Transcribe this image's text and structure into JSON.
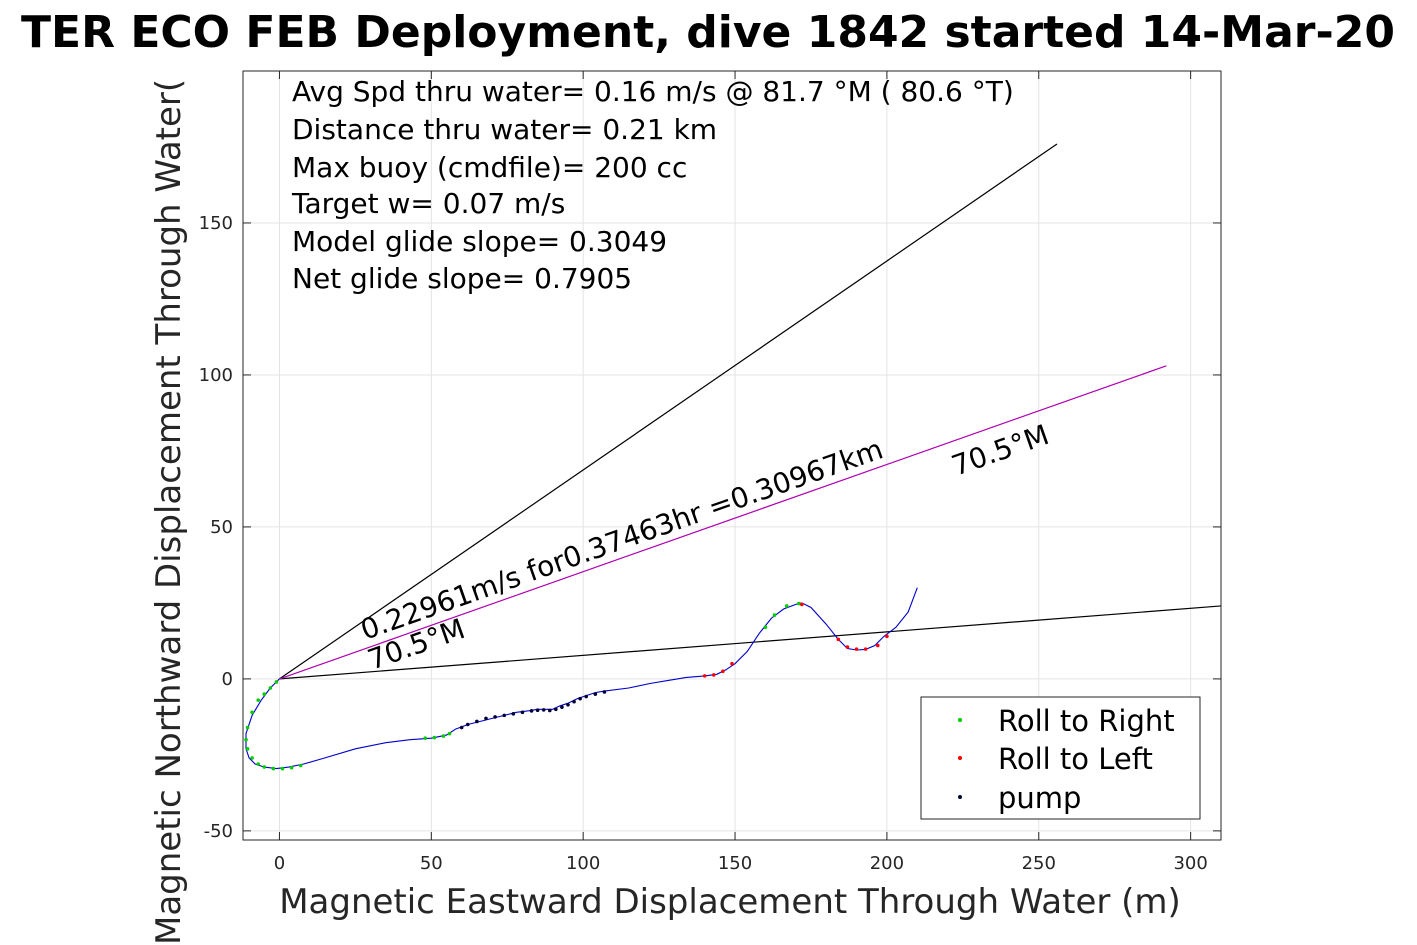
{
  "chart_data": {
    "type": "line",
    "title": "TER ECO FEB Deployment, dive 1842 started 14-Mar-20",
    "xlabel": "Magnetic Eastward Displacement Through Water (m)",
    "ylabel": "Magnetic Northward Displacement Through Water(",
    "xlim": [
      -12,
      310
    ],
    "ylim": [
      -53,
      200
    ],
    "xticks": [
      0,
      50,
      100,
      150,
      200,
      250,
      300
    ],
    "yticks": [
      -50,
      0,
      50,
      100,
      150
    ],
    "grid": true,
    "annotations": {
      "lines": [
        "Avg Spd thru water=  0.16 m/s @  81.7 °M ( 80.6 °T)",
        "Distance thru water=  0.21 km",
        "Max buoy (cmdfile)= 200 cc",
        "Target w= 0.07 m/s",
        "Model glide slope= 0.3049",
        "Net glide slope= 0.7905"
      ],
      "vector_label": "0.22961m/s for0.37463hr =0.30967km",
      "heading_label_upper": "70.5°M",
      "heading_label_lower": "70.5°M"
    },
    "reference_lines": [
      {
        "x": [
          0,
          256
        ],
        "y": [
          0,
          176
        ],
        "color": "#000000"
      },
      {
        "x": [
          0,
          310
        ],
        "y": [
          0,
          24
        ],
        "color": "#000000"
      },
      {
        "x": [
          0,
          292
        ],
        "y": [
          0,
          103
        ],
        "color": "#b000b0"
      }
    ],
    "track": {
      "name": "",
      "color": "#0000cc",
      "x": [
        0,
        -3,
        -6,
        -9,
        -11,
        -11,
        -10,
        -8,
        -5,
        -1,
        3,
        8,
        15,
        25,
        35,
        43,
        50,
        55,
        58,
        62,
        66,
        70,
        74,
        78,
        82,
        85,
        88,
        90,
        92,
        95,
        98,
        101,
        104,
        107,
        115,
        122,
        128,
        134,
        140,
        144,
        147,
        150,
        154,
        158,
        162,
        166,
        170,
        172,
        175,
        180,
        184,
        187,
        190,
        193,
        196,
        199,
        203,
        207,
        210
      ],
      "y": [
        0,
        -3,
        -7,
        -12,
        -18,
        -23,
        -26,
        -28,
        -29,
        -29.5,
        -29,
        -28,
        -26,
        -23,
        -21,
        -20,
        -19.5,
        -18.5,
        -16.5,
        -15,
        -14,
        -13,
        -12,
        -11,
        -10.5,
        -10,
        -10,
        -10,
        -9,
        -8,
        -6.5,
        -5.5,
        -4.5,
        -4,
        -3,
        -1.5,
        -0.5,
        0.5,
        1,
        1.5,
        3,
        5,
        9,
        15,
        20,
        23,
        24.5,
        25,
        23.5,
        18,
        13,
        10,
        9.5,
        9.7,
        11,
        14,
        17,
        22,
        30
      ]
    },
    "markers": {
      "roll_right": {
        "name": "Roll to Right",
        "color": "#00cc00",
        "x": [
          -1,
          -3,
          -5,
          -7,
          -9,
          -10.5,
          -11,
          -10.5,
          -9,
          -7,
          -5,
          -2,
          1,
          4,
          7,
          48,
          51,
          54,
          56,
          160,
          163,
          167,
          171
        ],
        "y": [
          -1,
          -3,
          -5,
          -7,
          -11,
          -16,
          -20,
          -23,
          -26,
          -28,
          -29,
          -29.5,
          -29.5,
          -29.2,
          -28.5,
          -19.5,
          -19.3,
          -18.8,
          -18,
          17,
          21,
          24,
          24.8
        ]
      },
      "roll_left": {
        "name": "Roll to Left",
        "color": "#ff0000",
        "x": [
          140,
          143,
          146,
          149,
          184,
          187,
          190,
          193,
          197,
          200,
          172
        ],
        "y": [
          1,
          1.3,
          2.5,
          5,
          13,
          10.5,
          9.8,
          9.8,
          11,
          14,
          24.5
        ],
        "pump_x": [],
        "pump_y": []
      },
      "pump": {
        "name": "pump",
        "color": "#000033",
        "x": [
          60,
          62,
          65,
          68,
          71,
          74,
          77,
          80,
          83,
          85,
          87,
          89,
          91,
          93,
          95,
          97,
          99,
          101,
          104,
          107
        ],
        "y": [
          -16,
          -15,
          -14,
          -13,
          -12.5,
          -12,
          -11.5,
          -11,
          -10.5,
          -10.3,
          -10.2,
          -10.4,
          -10,
          -9.3,
          -8.5,
          -7.5,
          -6.5,
          -5.8,
          -5,
          -4.3
        ]
      }
    },
    "legend": {
      "position": "bottom-right",
      "entries": [
        "Roll to Right",
        "Roll to Left",
        "pump"
      ]
    }
  }
}
